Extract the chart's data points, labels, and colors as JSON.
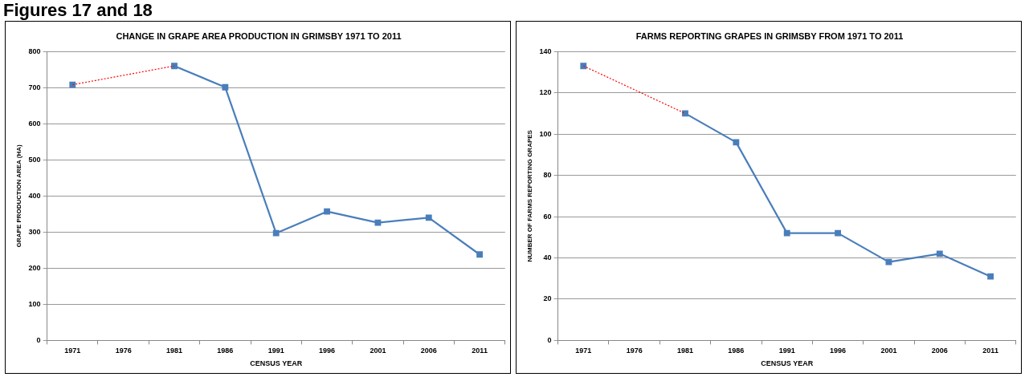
{
  "chart_data": [
    {
      "type": "line",
      "title": "CHANGE IN GRAPE AREA PRODUCTION IN GRIMSBY 1971 TO 2011",
      "xlabel": "CENSUS YEAR",
      "ylabel": "GRAPE PRODUCTION AREA (HA)",
      "annotations": [
        "Figures 17 and 18"
      ],
      "categories": [
        "1971",
        "1976",
        "1981",
        "1986",
        "1991",
        "1996",
        "2001",
        "2006",
        "2011"
      ],
      "series": [
        {
          "color": "#4a7ebb",
          "marker": "square",
          "line_style": "solid",
          "values": [
            708,
            null,
            760,
            701,
            297,
            357,
            326,
            340,
            238
          ]
        },
        {
          "color": "#ff0000",
          "marker": "none",
          "line_style": "dotted",
          "values": [
            708,
            null,
            760,
            null,
            null,
            null,
            null,
            null,
            null
          ]
        }
      ],
      "ylim": [
        0,
        800
      ],
      "yticks": [
        0,
        100,
        200,
        300,
        400,
        500,
        600,
        700,
        800
      ],
      "grid": "y",
      "legend": false
    },
    {
      "type": "line",
      "title": "FARMS REPORTING GRAPES IN GRIMSBY FROM 1971 TO 2011",
      "xlabel": "CENSUS YEAR",
      "ylabel": "NUMBER OF FARMS REPORTING GRAPES",
      "categories": [
        "1971",
        "1976",
        "1981",
        "1986",
        "1991",
        "1996",
        "2001",
        "2006",
        "2011"
      ],
      "series": [
        {
          "color": "#4a7ebb",
          "marker": "square",
          "line_style": "solid",
          "values": [
            133,
            null,
            110,
            96,
            52,
            52,
            38,
            42,
            31
          ]
        },
        {
          "color": "#ff0000",
          "marker": "none",
          "line_style": "dotted",
          "values": [
            133,
            null,
            110,
            null,
            null,
            null,
            null,
            null,
            null
          ]
        }
      ],
      "ylim": [
        0,
        140
      ],
      "yticks": [
        0,
        20,
        40,
        60,
        80,
        100,
        120,
        140
      ],
      "grid": "y",
      "legend": false
    }
  ]
}
